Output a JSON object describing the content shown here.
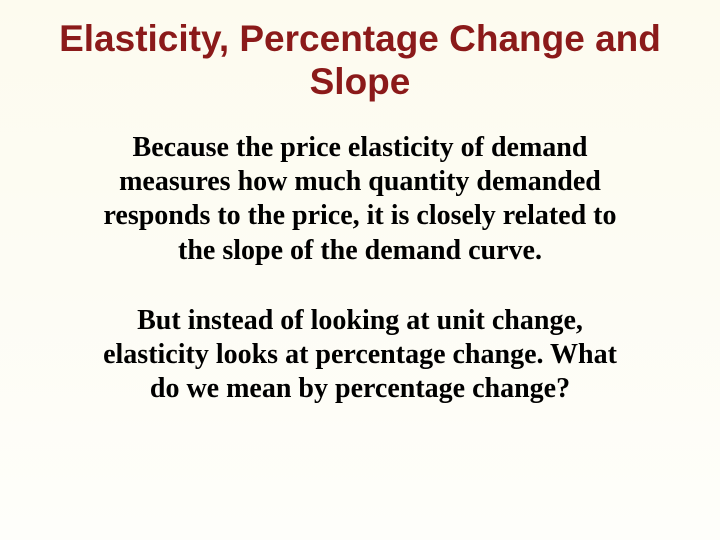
{
  "slide": {
    "title": "Elasticity, Percentage Change and Slope",
    "paragraphs": [
      "Because the price elasticity of demand measures how much quantity demanded responds to the price, it is closely related to the slope of the demand curve.",
      "But instead of looking at unit change, elasticity looks at percentage change. What do we mean by percentage change?"
    ],
    "colors": {
      "title_color": "#8b1a1a",
      "body_color": "#000000",
      "background_top": "#fdfbef",
      "background_bottom": "#fefefa"
    },
    "typography": {
      "title_font": "Arial",
      "title_size_pt": 28,
      "title_weight": "bold",
      "body_font": "Times New Roman",
      "body_size_pt": 21,
      "body_weight": "bold"
    }
  }
}
